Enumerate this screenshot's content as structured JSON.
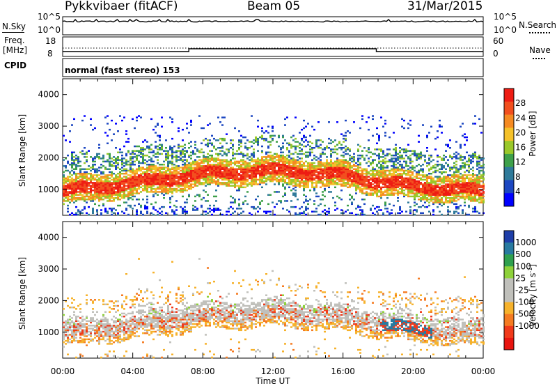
{
  "header": {
    "radar": "Pykkvibaer (fitACF)",
    "beam": "Beam 05",
    "date": "31/Mar/2015"
  },
  "nsky_panel": {
    "left_label": "N.Sky",
    "left_ticks": [
      "10^5",
      "10^0"
    ],
    "right_ticks": [
      "10^5",
      "10^0"
    ],
    "right_label": "N.Search"
  },
  "freq_panel": {
    "left_label_1": "Freq.",
    "left_label_2": "[MHz]",
    "left_ticks": [
      "18",
      "8"
    ],
    "right_ticks": [
      "60",
      "0"
    ],
    "right_label": "Nave"
  },
  "cpid": {
    "label": "CPID",
    "value": "normal (fast stereo) 153"
  },
  "power_panel": {
    "ylabel": "Slant Range [km]",
    "yticks": [
      "1000",
      "2000",
      "3000",
      "4000"
    ],
    "colorbar_label": "Power [dB]",
    "colorbar_ticks": [
      "4",
      "8",
      "12",
      "16",
      "20",
      "24",
      "28"
    ],
    "colors": [
      "#0000ff",
      "#1c47c1",
      "#2f7a9a",
      "#3ea04a",
      "#9ac82a",
      "#f4c12a",
      "#f58a22",
      "#f24f1e",
      "#ee1c13"
    ]
  },
  "velocity_panel": {
    "ylabel": "Slant Range [km]",
    "yticks": [
      "1000",
      "2000",
      "3000",
      "4000"
    ],
    "colorbar_label": "Velocity [m s",
    "colorbar_label_sup": "-1",
    "colorbar_label_end": "]",
    "colorbar_ticks": [
      "1000",
      "500",
      "100",
      "25",
      "-25",
      "-100",
      "-500",
      "-1000"
    ],
    "colors": [
      "#1e3ea8",
      "#287aa0",
      "#2fa04e",
      "#8ed13a",
      "#c0c0bb",
      "#c0c0bb",
      "#f6b22c",
      "#f57b22",
      "#f03a1b",
      "#e8150f"
    ]
  },
  "xaxis": {
    "label": "Time UT",
    "ticks": [
      "00:00",
      "04:00",
      "08:00",
      "12:00",
      "16:00",
      "20:00",
      "00:00"
    ]
  },
  "chart_data": {
    "type": "heatmap",
    "title": "Pykkvibaer (fitACF)   Beam 05   31/Mar/2015",
    "xlabel": "Time UT",
    "ylabel": "Slant Range [km]",
    "x_range": [
      "00:00",
      "24:00"
    ],
    "ylim": [
      180,
      4500
    ],
    "panels": [
      {
        "name": "Power [dB]",
        "colorbar_range": [
          0,
          30
        ],
        "approx_band_center_km": [
          {
            "time_h": 0,
            "range_km": 950
          },
          {
            "time_h": 4,
            "range_km": 1200
          },
          {
            "time_h": 8,
            "range_km": 1500
          },
          {
            "time_h": 12,
            "range_km": 1600
          },
          {
            "time_h": 16,
            "range_km": 1450
          },
          {
            "time_h": 18,
            "range_km": 1250
          },
          {
            "time_h": 20,
            "range_km": 1100
          },
          {
            "time_h": 24,
            "range_km": 950
          }
        ]
      },
      {
        "name": "Velocity [m s-1]",
        "colorbar_range": [
          -1000,
          1000
        ]
      }
    ],
    "frequency_mhz": [
      {
        "time_h": 0,
        "value": 9.5
      },
      {
        "time_h": 7.2,
        "value": 9.5
      },
      {
        "time_h": 7.2,
        "value": 11.5
      },
      {
        "time_h": 17.9,
        "value": 11.5
      },
      {
        "time_h": 17.9,
        "value": 9.5
      },
      {
        "time_h": 24,
        "value": 9.5
      }
    ]
  }
}
